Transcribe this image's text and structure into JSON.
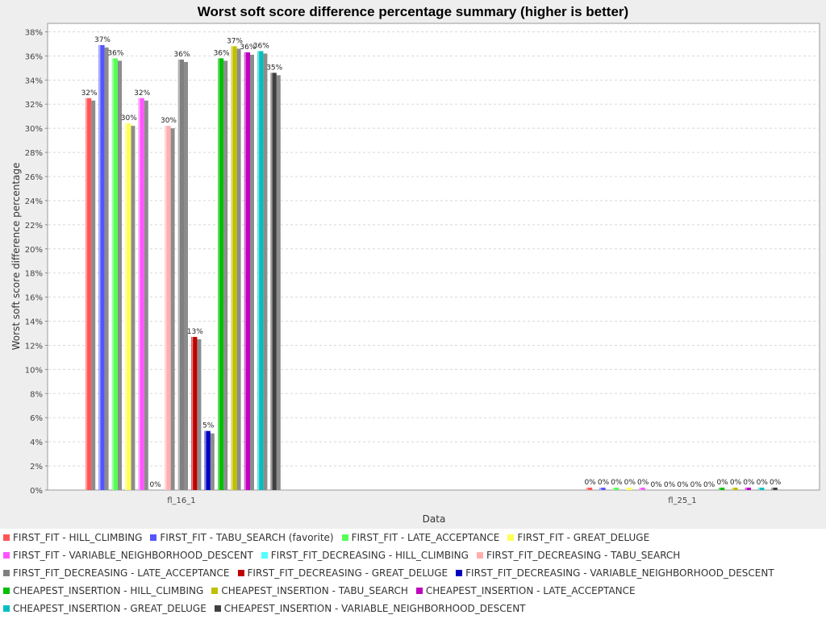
{
  "chart_data": {
    "type": "bar",
    "title": "Worst soft score difference percentage summary (higher is better)",
    "xlabel": "Data",
    "ylabel": "Worst soft score difference percentage",
    "ylim": [
      0,
      38.7
    ],
    "yticks": [
      "0%",
      "2%",
      "4%",
      "6%",
      "8%",
      "10%",
      "12%",
      "14%",
      "16%",
      "18%",
      "20%",
      "22%",
      "24%",
      "26%",
      "28%",
      "30%",
      "32%",
      "34%",
      "36%",
      "38%"
    ],
    "ytick_values": [
      0,
      2,
      4,
      6,
      8,
      10,
      12,
      14,
      16,
      18,
      20,
      22,
      24,
      26,
      28,
      30,
      32,
      34,
      36,
      38
    ],
    "grid": true,
    "legend_position": "bottom",
    "categories": [
      "fl_16_1",
      "fl_25_1"
    ],
    "series": [
      {
        "name": "FIRST_FIT - HILL_CLIMBING",
        "color": "#ff5555",
        "values": [
          32.5,
          0.2
        ],
        "labels": [
          "32%",
          "0%"
        ]
      },
      {
        "name": "FIRST_FIT - TABU_SEARCH (favorite)",
        "color": "#5555ff",
        "values": [
          36.9,
          0.2
        ],
        "labels": [
          "37%",
          "0%"
        ]
      },
      {
        "name": "FIRST_FIT - LATE_ACCEPTANCE",
        "color": "#55ff55",
        "values": [
          35.8,
          0.2
        ],
        "labels": [
          "36%",
          "0%"
        ]
      },
      {
        "name": "FIRST_FIT - GREAT_DELUGE",
        "color": "#ffff55",
        "values": [
          30.4,
          0.2
        ],
        "labels": [
          "30%",
          "0%"
        ]
      },
      {
        "name": "FIRST_FIT - VARIABLE_NEIGHBORHOOD_DESCENT",
        "color": "#ff55ff",
        "values": [
          32.5,
          0.2
        ],
        "labels": [
          "32%",
          "0%"
        ]
      },
      {
        "name": "FIRST_FIT_DECREASING - HILL_CLIMBING",
        "color": "#55ffff",
        "values": [
          0,
          0
        ],
        "labels": [
          "0%",
          "0%"
        ]
      },
      {
        "name": "FIRST_FIT_DECREASING - TABU_SEARCH",
        "color": "#ffafaf",
        "values": [
          30.2,
          0
        ],
        "labels": [
          "30%",
          "0%"
        ]
      },
      {
        "name": "FIRST_FIT_DECREASING - LATE_ACCEPTANCE",
        "color": "#808080",
        "values": [
          35.7,
          0
        ],
        "labels": [
          "36%",
          "0%"
        ]
      },
      {
        "name": "FIRST_FIT_DECREASING - GREAT_DELUGE",
        "color": "#c00000",
        "values": [
          12.7,
          0
        ],
        "labels": [
          "13%",
          "0%"
        ]
      },
      {
        "name": "FIRST_FIT_DECREASING - VARIABLE_NEIGHBORHOOD_DESCENT",
        "color": "#0000c0",
        "values": [
          4.9,
          0
        ],
        "labels": [
          "5%",
          "0%"
        ]
      },
      {
        "name": "CHEAPEST_INSERTION - HILL_CLIMBING",
        "color": "#00c000",
        "values": [
          35.8,
          0.2
        ],
        "labels": [
          "36%",
          "0%"
        ]
      },
      {
        "name": "CHEAPEST_INSERTION - TABU_SEARCH",
        "color": "#c0c000",
        "values": [
          36.8,
          0.2
        ],
        "labels": [
          "37%",
          "0%"
        ]
      },
      {
        "name": "CHEAPEST_INSERTION - LATE_ACCEPTANCE",
        "color": "#c000c0",
        "values": [
          36.3,
          0.2
        ],
        "labels": [
          "36%",
          "0%"
        ]
      },
      {
        "name": "CHEAPEST_INSERTION - GREAT_DELUGE",
        "color": "#00c0c0",
        "values": [
          36.4,
          0.2
        ],
        "labels": [
          "36%",
          "0%"
        ]
      },
      {
        "name": "CHEAPEST_INSERTION - VARIABLE_NEIGHBORHOOD_DESCENT",
        "color": "#404040",
        "values": [
          34.6,
          0.2
        ],
        "labels": [
          "35%",
          "0%"
        ]
      }
    ]
  },
  "legend_rows": [
    [
      0,
      1,
      2,
      3
    ],
    [
      4,
      5,
      6
    ],
    [
      7,
      8,
      9
    ],
    [
      10,
      11,
      12
    ],
    [
      13,
      14
    ]
  ]
}
